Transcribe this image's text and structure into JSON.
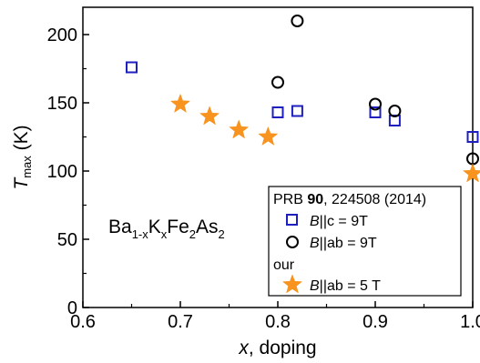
{
  "chart_data": {
    "type": "scatter",
    "xlabel": {
      "var": "x",
      "rest": ", doping"
    },
    "ylabel": {
      "main": "T",
      "sub": "max",
      "unit": " (K)"
    },
    "xlim": [
      0.6,
      1.0
    ],
    "ylim": [
      0,
      220
    ],
    "xticks": [
      "0.6",
      "0.7",
      "0.8",
      "0.9",
      "1.0"
    ],
    "yticks": [
      "0",
      "50",
      "100",
      "150",
      "200"
    ],
    "x_minor": [
      0.65,
      0.75,
      0.85,
      0.95
    ],
    "y_minor": [
      25,
      75,
      125,
      175
    ],
    "grid": false,
    "formula": {
      "p1": "Ba",
      "s1": "1-x",
      "p2": "K",
      "s2": "x",
      "p3": "Fe",
      "s3": "2",
      "p4": "As",
      "s4": "2"
    },
    "legend": {
      "placement": "bottom-right",
      "ref_prefix": "PRB ",
      "ref_volume": "90",
      "ref_rest": ", 224508 (2014)",
      "group_label": "our"
    },
    "series": [
      {
        "label_var": "B",
        "label_rest": "||c = 9T",
        "marker": "square",
        "color": "#1f1fbf",
        "points": [
          [
            0.65,
            176
          ],
          [
            0.8,
            143
          ],
          [
            0.82,
            144
          ],
          [
            0.9,
            143
          ],
          [
            0.92,
            137
          ],
          [
            1.0,
            125
          ]
        ]
      },
      {
        "label_var": "B",
        "label_rest": "||ab = 9T",
        "marker": "circle",
        "color": "#000000",
        "points": [
          [
            0.8,
            165
          ],
          [
            0.82,
            210
          ],
          [
            0.9,
            149
          ],
          [
            0.92,
            144
          ],
          [
            1.0,
            109
          ]
        ]
      },
      {
        "label_var": "B",
        "label_rest": "||ab = 5 T",
        "marker": "star",
        "color": "#f7931e",
        "points": [
          [
            0.7,
            149
          ],
          [
            0.73,
            140
          ],
          [
            0.76,
            130
          ],
          [
            0.79,
            125
          ],
          [
            1.0,
            98
          ]
        ]
      }
    ]
  }
}
